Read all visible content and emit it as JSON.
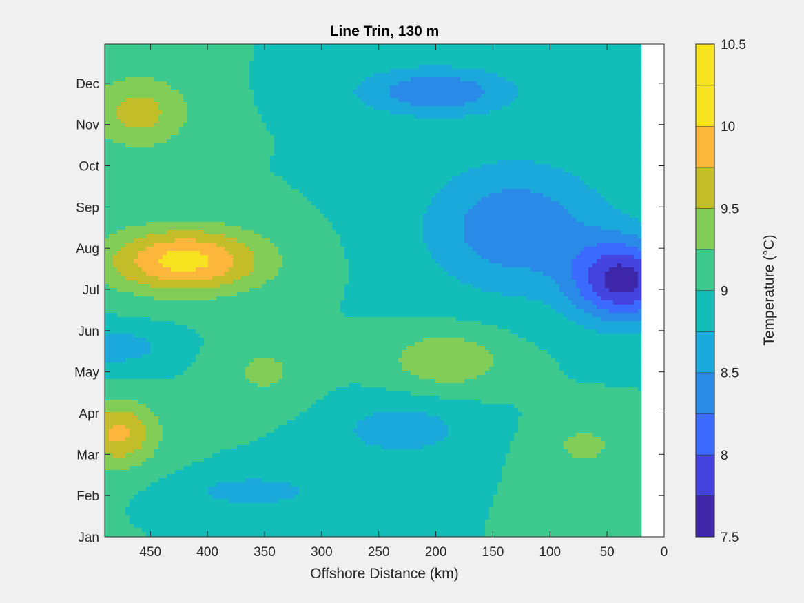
{
  "chart_data": {
    "type": "heatmap",
    "subtype": "filled-contour",
    "title": "Line Trin, 130 m",
    "xlabel": "Offshore Distance (km)",
    "ylabel": "",
    "xlim": [
      490,
      0
    ],
    "x_reversed": true,
    "x_ticks": [
      450,
      400,
      350,
      300,
      250,
      200,
      150,
      100,
      50,
      0
    ],
    "y_ticks": [
      "Jan",
      "Feb",
      "Mar",
      "Apr",
      "May",
      "Jun",
      "Jul",
      "Aug",
      "Sep",
      "Oct",
      "Nov",
      "Dec"
    ],
    "y_tick_month_index": [
      0,
      1,
      2,
      3,
      4,
      5,
      6,
      7,
      8,
      9,
      10,
      11
    ],
    "ylim_month_index": [
      0,
      11.95
    ],
    "data_coverage_x": [
      490,
      20
    ],
    "grid": false,
    "colorbar": {
      "label": "Temperature (°C)",
      "range": [
        7.5,
        10.5
      ],
      "ticks": [
        7.5,
        8,
        8.5,
        9,
        9.5,
        10,
        10.5
      ],
      "levels": [
        7.5,
        7.75,
        8.0,
        8.25,
        8.5,
        8.75,
        9.0,
        9.25,
        9.5,
        9.75,
        10.0,
        10.25,
        10.5
      ],
      "colors": [
        "#3e26a8",
        "#4543e0",
        "#3a6bfe",
        "#2a8ae7",
        "#1ba8db",
        "#13beb8",
        "#3ec98e",
        "#82cc58",
        "#c4bd2a",
        "#fcb63c",
        "#f6e21e",
        "#f6e21e"
      ]
    },
    "hotspots": [
      {
        "x": 420,
        "month": 6.7,
        "value": 10.1,
        "spread": 70,
        "month_spread": 0.8
      },
      {
        "x": 460,
        "month": 10.3,
        "value": 9.6,
        "spread": 45,
        "month_spread": 0.9
      },
      {
        "x": 478,
        "month": 2.5,
        "value": 9.8,
        "spread": 35,
        "month_spread": 0.8
      },
      {
        "x": 190,
        "month": 4.3,
        "value": 9.5,
        "spread": 50,
        "month_spread": 0.7
      },
      {
        "x": 70,
        "month": 2.2,
        "value": 9.3,
        "spread": 40,
        "month_spread": 0.7
      },
      {
        "x": 350,
        "month": 4.0,
        "value": 9.3,
        "spread": 40,
        "month_spread": 0.8
      },
      {
        "x": 35,
        "month": 6.2,
        "value": 7.7,
        "spread": 45,
        "month_spread": 1.0
      },
      {
        "x": 200,
        "month": 10.8,
        "value": 8.3,
        "spread": 70,
        "month_spread": 0.6
      },
      {
        "x": 130,
        "month": 7.5,
        "value": 8.3,
        "spread": 80,
        "month_spread": 1.6
      },
      {
        "x": 230,
        "month": 2.6,
        "value": 8.6,
        "spread": 60,
        "month_spread": 0.7
      },
      {
        "x": 360,
        "month": 1.1,
        "value": 8.6,
        "spread": 60,
        "month_spread": 0.4
      },
      {
        "x": 480,
        "month": 4.6,
        "value": 8.6,
        "spread": 45,
        "month_spread": 0.5
      }
    ],
    "base_value": 9.0
  }
}
